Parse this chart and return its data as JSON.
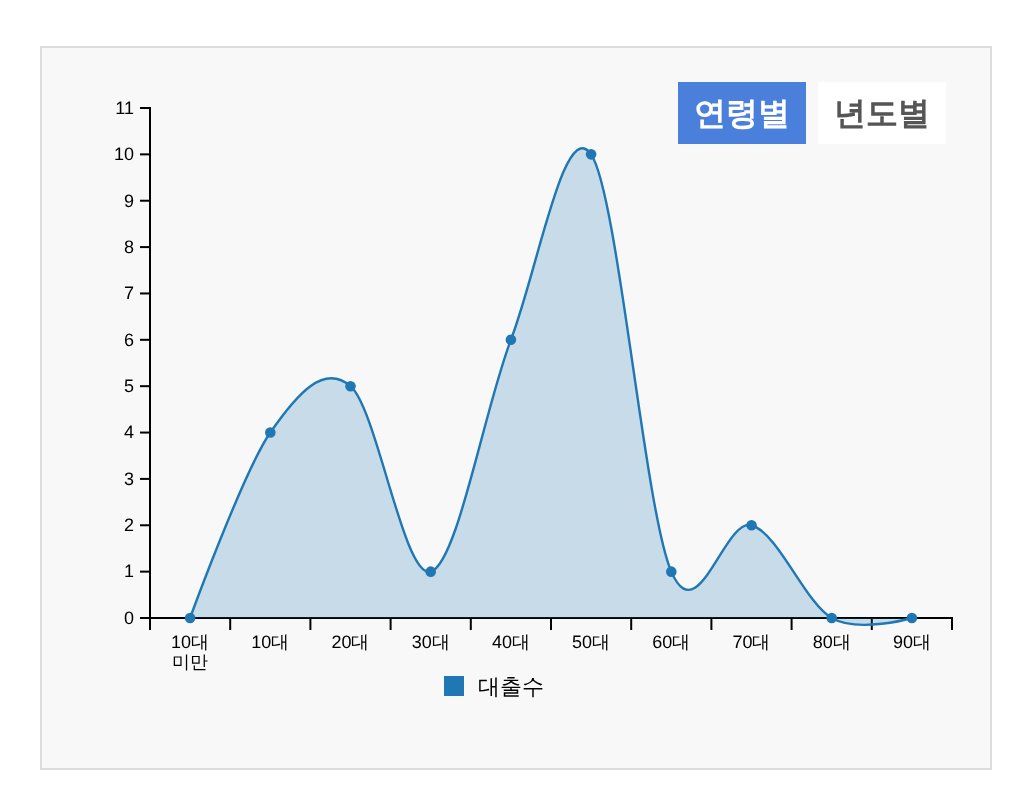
{
  "chart_data": {
    "type": "area",
    "categories": [
      "10대\n미만",
      "10대",
      "20대",
      "30대",
      "40대",
      "50대",
      "60대",
      "70대",
      "80대",
      "90대"
    ],
    "series": [
      {
        "name": "대출수",
        "color": "#1f77b4",
        "values": [
          0,
          4,
          5,
          1,
          6,
          10,
          1,
          2,
          0,
          0
        ]
      }
    ],
    "ylim": [
      0,
      11
    ],
    "yticks": [
      0,
      1,
      2,
      3,
      4,
      5,
      6,
      7,
      8,
      9,
      10,
      11
    ],
    "marker": "circle",
    "legend": "bottom",
    "grid": false,
    "annotations": [
      "연령별",
      "년도별"
    ]
  }
}
